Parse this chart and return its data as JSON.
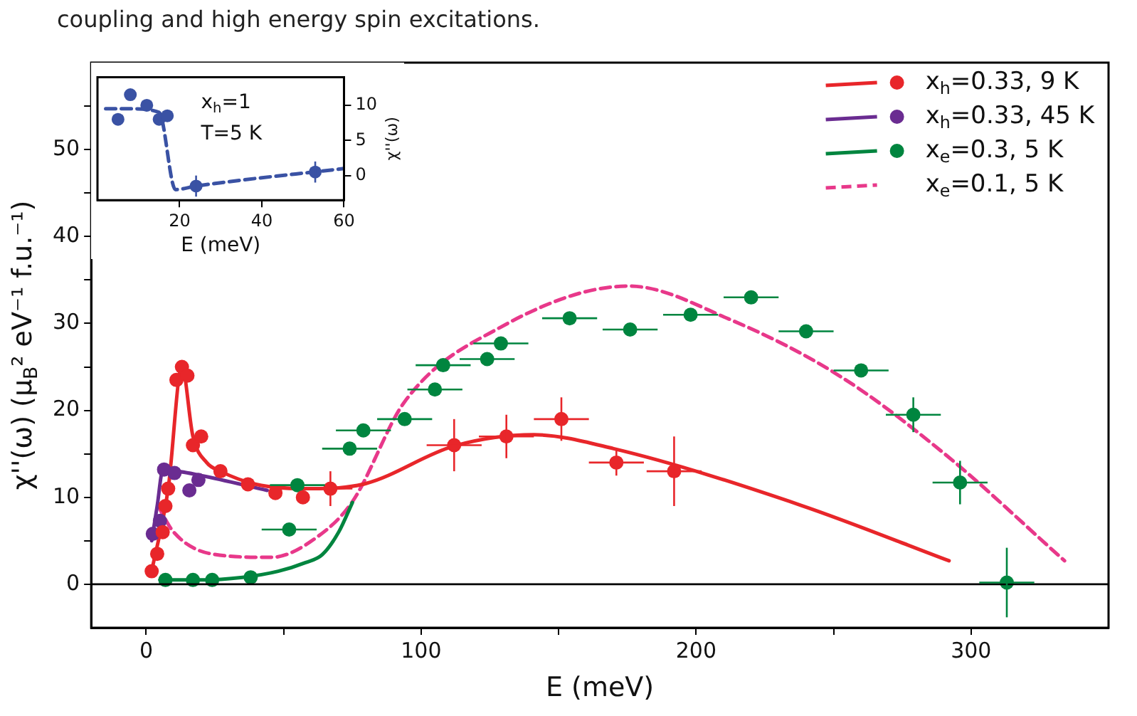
{
  "chart_data": [
    {
      "type": "scatter",
      "xlabel": "E (meV)",
      "ylabel": "χ''(ω) (μ$_{B}$² eV⁻¹ f.u.⁻¹)",
      "annotations": [
        "coupling and high energy spin excitations."
      ],
      "xlim": [
        -20,
        350
      ],
      "xticks": [
        0,
        {
          "value": 50,
          "label": null
        },
        100,
        {
          "value": 150,
          "label": null
        },
        200,
        {
          "value": 250,
          "label": null
        },
        300
      ],
      "ylim": [
        -5,
        60
      ],
      "yticks": [
        0,
        {
          "value": 5,
          "label": null
        },
        10,
        {
          "value": 15,
          "label": null
        },
        20,
        {
          "value": 25,
          "label": null
        },
        30,
        {
          "value": 35,
          "label": null
        },
        40,
        {
          "value": 45,
          "label": null
        },
        50,
        {
          "value": 55,
          "label": null
        }
      ],
      "legend": "top right",
      "ref_lines": [
        {
          "axis": "y",
          "value": 0,
          "color": "#000000"
        }
      ],
      "series": [
        {
          "type": "scatter",
          "name": "x$_{h}$=0.33, 9 K",
          "color": "#e8262a",
          "marker": "circle",
          "x": [
            2,
            4,
            6,
            7,
            8,
            11,
            13,
            15,
            17,
            20,
            27,
            37,
            47,
            57,
            67,
            112,
            131,
            151,
            171,
            192
          ],
          "values": [
            1.5,
            3.5,
            6,
            9,
            11,
            23.5,
            25,
            24,
            16,
            17,
            13,
            11.5,
            10.5,
            10,
            11,
            16,
            17,
            19,
            14,
            13
          ],
          "errors": [
            null,
            null,
            null,
            null,
            null,
            null,
            null,
            null,
            null,
            null,
            null,
            null,
            null,
            null,
            2,
            3,
            2.5,
            2.5,
            1.5,
            4
          ],
          "xerrors": [
            null,
            null,
            null,
            null,
            null,
            null,
            null,
            null,
            null,
            null,
            null,
            null,
            null,
            null,
            8,
            10,
            10,
            10,
            10,
            10
          ]
        },
        {
          "type": "line",
          "color": "#e8262a",
          "line_style": "solid",
          "x": [
            2,
            8,
            13,
            17,
            22,
            27,
            40,
            60,
            80,
            112,
            141,
            170,
            238,
            292
          ],
          "values": [
            1.5,
            11,
            25,
            17,
            14,
            13,
            11.5,
            11,
            11.6,
            15.9,
            17.2,
            15.6,
            9.1,
            2.7
          ]
        },
        {
          "type": "scatter",
          "name": "x$_{h}$=0.33, 45 K",
          "color": "#6a2c91",
          "marker": "circle",
          "x": [
            2.4,
            5,
            6.5,
            10.3,
            15.7,
            19
          ],
          "values": [
            5.8,
            7.3,
            13.2,
            12.8,
            10.8,
            12
          ]
        },
        {
          "type": "line",
          "color": "#6a2c91",
          "line_style": "solid",
          "x": [
            2,
            4,
            6,
            10,
            20,
            44
          ],
          "values": [
            5,
            9,
            13,
            13,
            12.5,
            10.8
          ]
        },
        {
          "type": "scatter",
          "name": "x$_{e}$=0.3, 5 K",
          "color": "#00853f",
          "marker": "circle",
          "x": [
            7,
            17,
            24,
            38,
            52,
            55,
            74,
            79,
            94,
            105,
            108,
            124,
            129,
            154,
            176,
            198,
            220,
            240,
            260,
            279,
            296,
            313
          ],
          "values": [
            0.5,
            0.5,
            0.5,
            0.8,
            6.3,
            11.4,
            15.6,
            17.7,
            19,
            22.4,
            25.2,
            25.9,
            27.7,
            30.6,
            29.3,
            31,
            33,
            29.1,
            24.6,
            19.5,
            11.7,
            0.2
          ],
          "errors": [
            null,
            null,
            null,
            null,
            null,
            null,
            null,
            null,
            null,
            null,
            null,
            null,
            null,
            null,
            null,
            null,
            null,
            null,
            null,
            2,
            2.5,
            4
          ],
          "xerrors": [
            null,
            null,
            null,
            null,
            10,
            10,
            10,
            10,
            10,
            10,
            10,
            10,
            10,
            10,
            10,
            10,
            10,
            10,
            10,
            10,
            10,
            10
          ]
        },
        {
          "type": "line",
          "color": "#00853f",
          "line_style": "solid",
          "x": [
            5,
            20,
            35,
            48,
            58,
            64,
            70,
            75
          ],
          "values": [
            0.5,
            0.5,
            0.8,
            1.5,
            2.5,
            3.4,
            6,
            9.4
          ]
        },
        {
          "type": "line",
          "name": "x$_{e}$=0.1, 5 K",
          "color": "#e8388a",
          "line_style": "dashed",
          "x": [
            4.3,
            10,
            23.7,
            45.5,
            62,
            75,
            94,
            128.5,
            175.6,
            212,
            252,
            290,
            334
          ],
          "values": [
            9,
            6,
            3.5,
            3.1,
            5.4,
            9.5,
            21,
            29.5,
            34.3,
            30.5,
            24,
            15.1,
            2.7
          ]
        }
      ]
    },
    {
      "type": "scatter",
      "xlabel": "E (meV)",
      "y2label": "χ''(ω)",
      "annotations": [
        "x$_{h}$=1",
        "T=5 K"
      ],
      "xlim": [
        0,
        60
      ],
      "xticks": [
        20,
        40,
        60
      ],
      "y2lim": [
        -3.5,
        14
      ],
      "y2ticks": [
        0,
        5,
        10
      ],
      "series": [
        {
          "type": "scatter",
          "axis": "y2",
          "color": "#3a52a4",
          "marker": "circle",
          "x": [
            5,
            8,
            12,
            15,
            17,
            24,
            53
          ],
          "values": [
            8,
            11.5,
            10,
            8,
            8.5,
            -1.5,
            0.5
          ],
          "errors": [
            null,
            null,
            null,
            null,
            null,
            1.5,
            1.5
          ]
        },
        {
          "type": "line",
          "axis": "y2",
          "color": "#3a52a4",
          "line_style": "dashed",
          "x": [
            2,
            8,
            15,
            19,
            24,
            60
          ],
          "values": [
            9.5,
            9.5,
            9,
            -2,
            -1.5,
            1
          ]
        }
      ]
    }
  ]
}
